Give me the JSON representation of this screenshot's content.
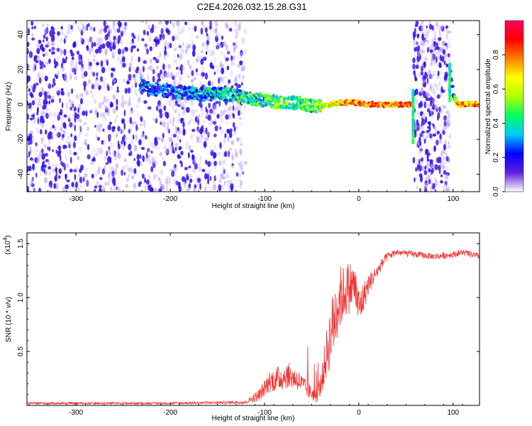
{
  "title": "C2E4.2026.032.15.28.G31",
  "chart_data": [
    {
      "type": "heatmap",
      "title": "C2E4.2026.032.15.28.G31",
      "xlabel": "Height of straight line (km)",
      "ylabel": "Frequency (Hz)",
      "xlim": [
        -352,
        128
      ],
      "ylim": [
        -50,
        48
      ],
      "x_ticks": [
        -300,
        -200,
        -100,
        0,
        100
      ],
      "y_ticks": [
        -40,
        -20,
        0,
        20,
        40
      ],
      "colorbar": {
        "label": "Normalized spectral amplitude",
        "range": [
          0.0,
          1.0
        ],
        "ticks": [
          "0.0",
          "0.2",
          "0.4",
          "0.6",
          "0.8"
        ],
        "colormap": [
          "#ffffff",
          "#6020e0",
          "#0000ff",
          "#00c8ff",
          "#00ff60",
          "#b0ff00",
          "#ffff00",
          "#ff8000",
          "#ff0000",
          "#ff0060"
        ]
      },
      "noise_region": {
        "x_range": [
          -352,
          -120
        ]
      },
      "gap_region": {
        "x_range": [
          58,
          97
        ]
      },
      "signal_track": {
        "x": [
          -232,
          -225,
          -210,
          -190,
          -170,
          -150,
          -130,
          -110,
          -95,
          -80,
          -65,
          -50,
          -40,
          -30,
          -20,
          -10,
          0,
          10,
          20,
          30,
          40,
          50,
          58,
          97,
          100,
          105,
          115,
          128
        ],
        "freq": [
          12,
          10,
          8,
          7,
          6,
          6,
          5,
          3,
          2,
          1,
          1,
          -1,
          -1,
          0,
          1,
          1,
          1,
          0,
          0,
          0,
          0,
          0,
          0,
          22,
          6,
          0,
          0,
          0
        ],
        "amplitude": [
          0.4,
          0.45,
          0.4,
          0.4,
          0.45,
          0.5,
          0.55,
          0.6,
          0.6,
          0.65,
          0.65,
          0.6,
          0.75,
          0.8,
          0.85,
          0.9,
          0.95,
          0.95,
          0.95,
          0.95,
          0.95,
          0.95,
          0.9,
          0.4,
          0.5,
          0.9,
          0.9,
          0.9
        ]
      }
    },
    {
      "type": "line",
      "title": "",
      "xlabel": "Height of straight line (km)",
      "ylabel": "SNR (10 * v/v)",
      "y_multiplier": "(x10",
      "y_multiplier_exp": "4",
      "y_multiplier_close": ")",
      "xlim": [
        -352,
        128
      ],
      "ylim": [
        0,
        1.6
      ],
      "x_ticks": [
        -300,
        -200,
        -100,
        0,
        100
      ],
      "y_ticks": [
        0.5,
        1.0,
        1.5
      ],
      "color": "#ee3333",
      "series": [
        {
          "x": [
            -352,
            -300,
            -200,
            -120,
            -105,
            -95,
            -85,
            -75,
            -65,
            -55,
            -45,
            -40,
            -35,
            -30,
            -25,
            -20,
            -15,
            -10,
            -5,
            0,
            5,
            10,
            20,
            30,
            40,
            60,
            80,
            100,
            110,
            128
          ],
          "values": [
            0.02,
            0.02,
            0.02,
            0.03,
            0.1,
            0.22,
            0.25,
            0.28,
            0.24,
            0.15,
            0.08,
            0.2,
            0.45,
            0.65,
            0.85,
            1.0,
            1.05,
            1.1,
            1.12,
            0.9,
            1.0,
            1.12,
            1.25,
            1.38,
            1.42,
            1.4,
            1.38,
            1.4,
            1.42,
            1.38
          ],
          "noise": [
            0.01,
            0.01,
            0.01,
            0.015,
            0.06,
            0.1,
            0.12,
            0.12,
            0.1,
            0.08,
            0.06,
            0.12,
            0.22,
            0.3,
            0.35,
            0.3,
            0.25,
            0.25,
            0.2,
            0.2,
            0.15,
            0.1,
            0.06,
            0.04,
            0.03,
            0.03,
            0.03,
            0.03,
            0.03,
            0.03
          ]
        }
      ]
    }
  ]
}
